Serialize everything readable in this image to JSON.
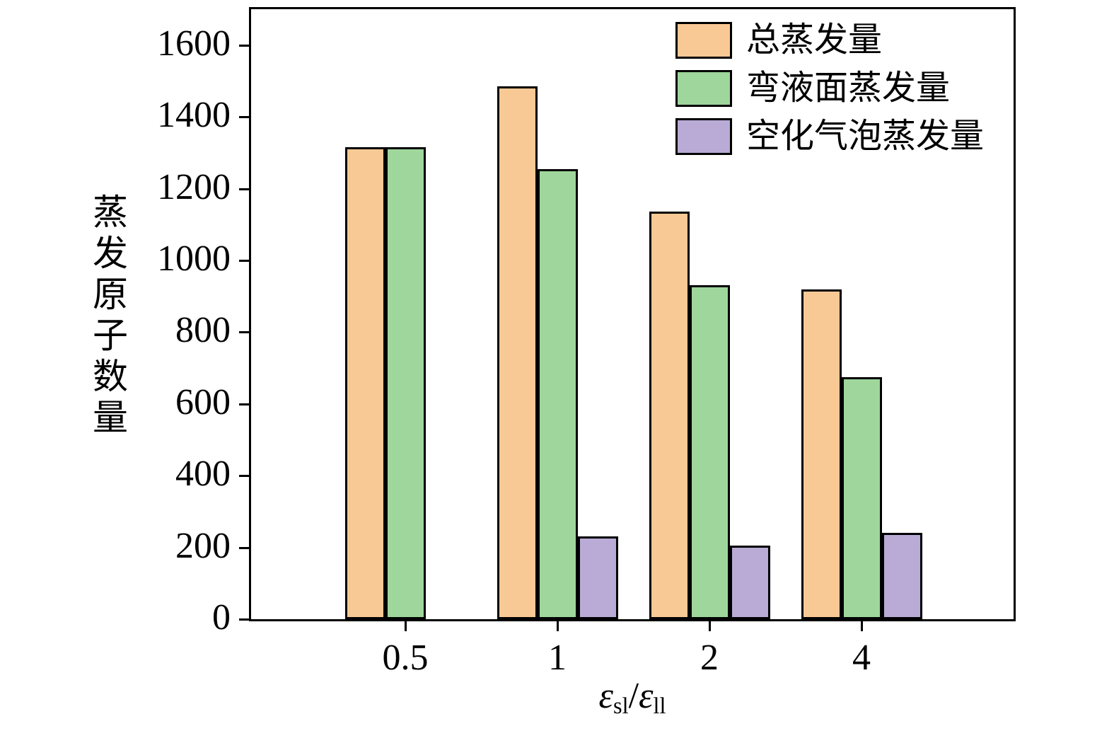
{
  "chart_data": {
    "type": "bar",
    "title": "",
    "categories": [
      "0.5",
      "1",
      "2",
      "4"
    ],
    "series": [
      {
        "key": "total",
        "name": "总蒸发量",
        "color": "#F9C995",
        "values": [
          1315,
          1485,
          1135,
          920
        ]
      },
      {
        "key": "meniscus",
        "name": "弯液面蒸发量",
        "color": "#9FD69B",
        "values": [
          1315,
          1255,
          930,
          675
        ]
      },
      {
        "key": "cavitation",
        "name": "空化气泡蒸发量",
        "color": "#B9ABD6",
        "values": [
          0,
          230,
          205,
          240
        ]
      }
    ],
    "ylabel": "蒸发原子数量",
    "xlabel": "εsl/εll",
    "xlabel_parts": {
      "num_symbol": "ε",
      "num_sub": "sl",
      "slash": "/",
      "den_symbol": "ε",
      "den_sub": "ll"
    },
    "ylim": [
      0,
      1700
    ],
    "yticks": [
      0,
      200,
      400,
      600,
      800,
      1000,
      1200,
      1400,
      1600
    ],
    "grid": false,
    "legend_position": "top-right-inside",
    "bar_edge_color": "#000000",
    "frame_color": "#000000"
  }
}
